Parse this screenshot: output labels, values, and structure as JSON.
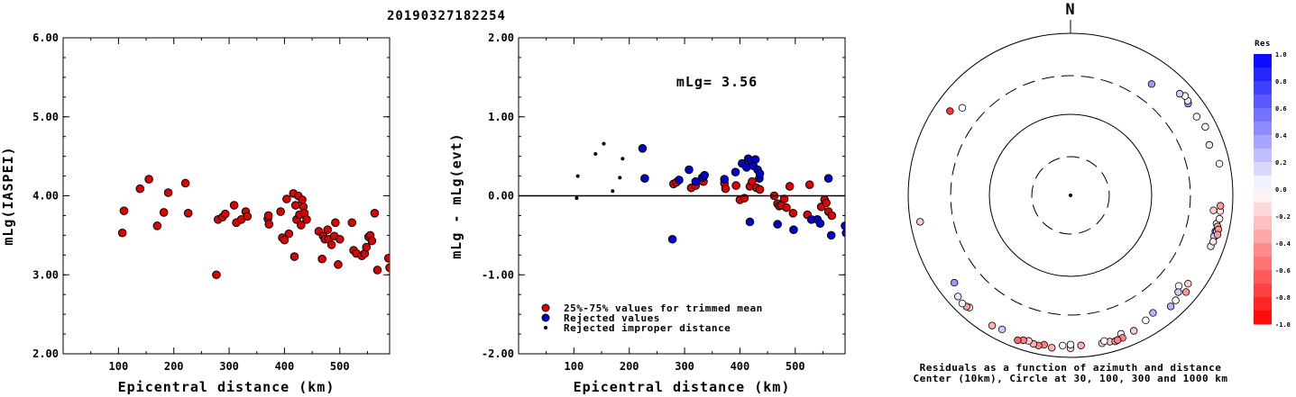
{
  "page_title": "20190327182254",
  "chart_data": [
    {
      "type": "scatter",
      "name": "magnitude-vs-distance",
      "xlabel": "Epicentral distance (km)",
      "ylabel": "mLg(IASPEI)",
      "xlim": [
        0,
        590
      ],
      "ylim": [
        2.0,
        6.0
      ],
      "xticks": [
        100,
        200,
        300,
        400,
        500
      ],
      "yticks": [
        "2.00",
        "3.00",
        "4.00",
        "5.00",
        "6.00"
      ],
      "points": [
        [
          107,
          3.53
        ],
        [
          110,
          3.81
        ],
        [
          139,
          4.09
        ],
        [
          155,
          4.21
        ],
        [
          170,
          3.62
        ],
        [
          182,
          3.79
        ],
        [
          190,
          4.04
        ],
        [
          221,
          4.16
        ],
        [
          226,
          3.78
        ],
        [
          277,
          3.0
        ],
        [
          280,
          3.7
        ],
        [
          288,
          3.73
        ],
        [
          293,
          3.77
        ],
        [
          309,
          3.88
        ],
        [
          313,
          3.66
        ],
        [
          322,
          3.7
        ],
        [
          330,
          3.8
        ],
        [
          333,
          3.74
        ],
        [
          370,
          3.71
        ],
        [
          371,
          3.75
        ],
        [
          372,
          3.64
        ],
        [
          393,
          3.8
        ],
        [
          396,
          3.47
        ],
        [
          400,
          3.44
        ],
        [
          404,
          3.96
        ],
        [
          408,
          3.52
        ],
        [
          416,
          4.03
        ],
        [
          418,
          3.23
        ],
        [
          420,
          3.88
        ],
        [
          422,
          3.7
        ],
        [
          425,
          4.0
        ],
        [
          427,
          3.76
        ],
        [
          430,
          3.63
        ],
        [
          432,
          3.95
        ],
        [
          434,
          3.86
        ],
        [
          436,
          3.78
        ],
        [
          440,
          3.7
        ],
        [
          462,
          3.55
        ],
        [
          468,
          3.2
        ],
        [
          470,
          3.49
        ],
        [
          473,
          3.45
        ],
        [
          478,
          3.57
        ],
        [
          480,
          3.45
        ],
        [
          485,
          3.38
        ],
        [
          490,
          3.49
        ],
        [
          492,
          3.66
        ],
        [
          497,
          3.13
        ],
        [
          500,
          3.45
        ],
        [
          522,
          3.66
        ],
        [
          525,
          3.31
        ],
        [
          530,
          3.27
        ],
        [
          540,
          3.24
        ],
        [
          545,
          3.27
        ],
        [
          548,
          3.35
        ],
        [
          552,
          3.48
        ],
        [
          555,
          3.5
        ],
        [
          558,
          3.43
        ],
        [
          563,
          3.78
        ],
        [
          568,
          3.06
        ],
        [
          588,
          3.21
        ],
        [
          590,
          3.09
        ]
      ]
    },
    {
      "type": "scatter",
      "name": "residual-vs-distance",
      "xlabel": "Epicentral distance (km)",
      "ylabel": "mLg - mLg(evt)",
      "annotation": "mLg= 3.56",
      "xlim": [
        0,
        590
      ],
      "ylim": [
        -2.0,
        2.0
      ],
      "xticks": [
        100,
        200,
        300,
        400,
        500
      ],
      "yticks": [
        "-2.00",
        "-1.00",
        "0.00",
        "1.00",
        "2.00"
      ],
      "legend": [
        "25%-75% values for trimmed mean",
        "Rejected values",
        "Rejected improper distance"
      ],
      "series": [
        {
          "name": "25%-75% values for trimmed mean",
          "color": "#dd0000",
          "marker": "circle",
          "points": [
            [
              280,
              0.15
            ],
            [
              285,
              0.17
            ],
            [
              312,
              0.1
            ],
            [
              320,
              0.13
            ],
            [
              334,
              0.18
            ],
            [
              372,
              0.16
            ],
            [
              374,
              0.09
            ],
            [
              393,
              0.13
            ],
            [
              400,
              -0.05
            ],
            [
              408,
              -0.03
            ],
            [
              418,
              0.12
            ],
            [
              422,
              0.18
            ],
            [
              430,
              0.1
            ],
            [
              436,
              0.08
            ],
            [
              462,
              0.0
            ],
            [
              468,
              -0.1
            ],
            [
              471,
              -0.13
            ],
            [
              475,
              -0.12
            ],
            [
              480,
              -0.04
            ],
            [
              484,
              -0.15
            ],
            [
              490,
              0.12
            ],
            [
              496,
              -0.22
            ],
            [
              522,
              -0.24
            ],
            [
              526,
              0.14
            ],
            [
              547,
              -0.14
            ],
            [
              553,
              -0.05
            ],
            [
              556,
              -0.09
            ],
            [
              560,
              -0.2
            ],
            [
              566,
              -0.25
            ]
          ]
        },
        {
          "name": "Rejected values",
          "color": "#0000cc",
          "marker": "circle",
          "points": [
            [
              224,
              0.6
            ],
            [
              228,
              0.22
            ],
            [
              278,
              -0.55
            ],
            [
              290,
              0.2
            ],
            [
              308,
              0.33
            ],
            [
              320,
              0.18
            ],
            [
              332,
              0.23
            ],
            [
              336,
              0.26
            ],
            [
              372,
              0.21
            ],
            [
              392,
              0.3
            ],
            [
              404,
              0.41
            ],
            [
              412,
              0.36
            ],
            [
              415,
              0.47
            ],
            [
              418,
              -0.33
            ],
            [
              420,
              0.44
            ],
            [
              424,
              0.38
            ],
            [
              428,
              0.46
            ],
            [
              432,
              0.33
            ],
            [
              435,
              0.22
            ],
            [
              436,
              0.28
            ],
            [
              468,
              -0.36
            ],
            [
              497,
              -0.43
            ],
            [
              529,
              -0.3
            ],
            [
              540,
              -0.3
            ],
            [
              545,
              -0.35
            ],
            [
              560,
              0.22
            ],
            [
              565,
              -0.5
            ],
            [
              590,
              -0.38
            ],
            [
              592,
              -0.47
            ]
          ]
        },
        {
          "name": "Rejected improper distance",
          "color": "#000000",
          "marker": "dot",
          "points": [
            [
              105,
              -0.03
            ],
            [
              107,
              0.25
            ],
            [
              139,
              0.53
            ],
            [
              154,
              0.66
            ],
            [
              170,
              0.06
            ],
            [
              183,
              0.23
            ],
            [
              188,
              0.47
            ]
          ]
        }
      ]
    },
    {
      "type": "polar-scatter",
      "name": "residuals-azimuth-distance",
      "north_label": "N",
      "caption_line1": "Residuals as a function of azimuth and distance",
      "caption_line2": "Center (10km), Circle at 30, 100, 300 and 1000 km",
      "rings_km": [
        30,
        100,
        300,
        1000
      ],
      "colorbar_title": "Res",
      "colorbar_ticks": [
        "1.0",
        "0.8",
        "0.6",
        "0.4",
        "0.2",
        "0.0",
        "-0.2",
        "-0.4",
        "-0.6",
        "-0.8",
        "-1.0"
      ],
      "points": [
        {
          "az": 305,
          "dist": 650,
          "res": -0.8
        },
        {
          "az": 309,
          "dist": 520,
          "res": 0.0
        },
        {
          "az": 260,
          "dist": 760,
          "res": -0.2
        },
        {
          "az": 36,
          "dist": 500,
          "res": 0.4
        },
        {
          "az": 52,
          "dist": 690,
          "res": 0.4
        },
        {
          "az": 51,
          "dist": 720,
          "res": 0.1
        },
        {
          "az": 49,
          "dist": 740,
          "res": 0.0
        },
        {
          "az": 47,
          "dist": 690,
          "res": 0.2
        },
        {
          "az": 58,
          "dist": 680,
          "res": 0.0
        },
        {
          "az": 63,
          "dist": 730,
          "res": 0.0
        },
        {
          "az": 70,
          "dist": 660,
          "res": 0.1
        },
        {
          "az": 78,
          "dist": 750,
          "res": 0.0
        },
        {
          "az": 96,
          "dist": 590,
          "res": -0.2
        },
        {
          "az": 101,
          "dist": 680,
          "res": -0.1
        },
        {
          "az": 104,
          "dist": 690,
          "res": 0.6
        },
        {
          "az": 106,
          "dist": 700,
          "res": 0.4
        },
        {
          "az": 102,
          "dist": 710,
          "res": -0.3
        },
        {
          "az": 106,
          "dist": 690,
          "res": 0.2
        },
        {
          "az": 99,
          "dist": 720,
          "res": 0.0
        },
        {
          "az": 104,
          "dist": 720,
          "res": 0.0
        },
        {
          "az": 96,
          "dist": 715,
          "res": -0.1
        },
        {
          "az": 110,
          "dist": 690,
          "res": 0.1
        },
        {
          "az": 94,
          "dist": 710,
          "res": -0.4
        },
        {
          "az": 103,
          "dist": 740,
          "res": -0.4
        },
        {
          "az": 105,
          "dist": 750,
          "res": -0.4
        },
        {
          "az": 108,
          "dist": 705,
          "res": -0.1
        },
        {
          "az": 130,
          "dist": 550,
          "res": 0.0
        },
        {
          "az": 132,
          "dist": 610,
          "res": 0.2
        },
        {
          "az": 127,
          "dist": 650,
          "res": -0.2
        },
        {
          "az": 135,
          "dist": 680,
          "res": 0.0
        },
        {
          "az": 130,
          "dist": 720,
          "res": -0.4
        },
        {
          "az": 138,
          "dist": 700,
          "res": 0.3
        },
        {
          "az": 145,
          "dist": 590,
          "res": 0.3
        },
        {
          "az": 149,
          "dist": 630,
          "res": 0.0
        },
        {
          "az": 155,
          "dist": 700,
          "res": -0.2
        },
        {
          "az": 160,
          "dist": 660,
          "res": 0.0
        },
        {
          "az": 165,
          "dist": 740,
          "res": -0.2
        },
        {
          "az": 163,
          "dist": 765,
          "res": -0.4
        },
        {
          "az": 160,
          "dist": 745,
          "res": -0.5
        },
        {
          "az": 162,
          "dist": 755,
          "res": -0.5
        },
        {
          "az": 168,
          "dist": 735,
          "res": -0.2
        },
        {
          "az": 167,
          "dist": 700,
          "res": 0.0
        },
        {
          "az": 176,
          "dist": 720,
          "res": -0.3
        },
        {
          "az": 180,
          "dist": 775,
          "res": -0.2
        },
        {
          "az": 183,
          "dist": 720,
          "res": 0.0
        },
        {
          "az": 180,
          "dist": 695,
          "res": 0.0
        },
        {
          "az": 187,
          "dist": 785,
          "res": -0.3
        },
        {
          "az": 190,
          "dist": 745,
          "res": -0.5
        },
        {
          "az": 192,
          "dist": 785,
          "res": -0.5
        },
        {
          "az": 194,
          "dist": 775,
          "res": -0.3
        },
        {
          "az": 196,
          "dist": 740,
          "res": -0.2
        },
        {
          "az": 198,
          "dist": 760,
          "res": -0.5
        },
        {
          "az": 200,
          "dist": 800,
          "res": -0.6
        },
        {
          "az": 207,
          "dist": 720,
          "res": 0.2
        },
        {
          "az": 211,
          "dist": 750,
          "res": -0.3
        },
        {
          "az": 222,
          "dist": 730,
          "res": -0.1
        },
        {
          "az": 223,
          "dist": 755,
          "res": -0.4
        },
        {
          "az": 225,
          "dist": 770,
          "res": 0.0
        },
        {
          "az": 228,
          "dist": 735,
          "res": 0.1
        },
        {
          "az": 233,
          "dist": 620,
          "res": 0.4
        }
      ]
    }
  ]
}
